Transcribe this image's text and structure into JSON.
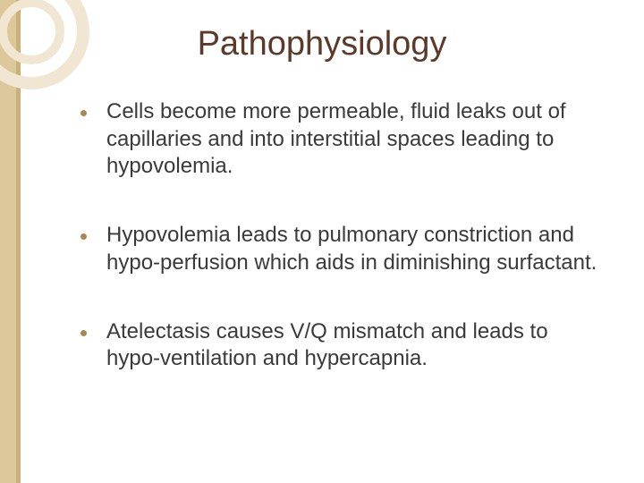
{
  "slide": {
    "title": "Pathophysiology",
    "title_color": "#5b3a29",
    "title_fontsize": 38,
    "background_color": "#ffffff",
    "left_bar_color": "#dcc89a",
    "left_bar_accent": "#c9b178",
    "ring_color": "#f0e6d2",
    "bullet_color": "#a88850",
    "body_text_color": "#3a3a3a",
    "body_fontsize": 24,
    "bullets": [
      "Cells become more permeable, fluid leaks out of capillaries and into interstitial spaces leading to hypovolemia.",
      "Hypovolemia leads to pulmonary constriction and hypo-perfusion which aids in diminishing surfactant.",
      "Atelectasis causes V/Q mismatch and leads to hypo-ventilation and hypercapnia."
    ]
  }
}
